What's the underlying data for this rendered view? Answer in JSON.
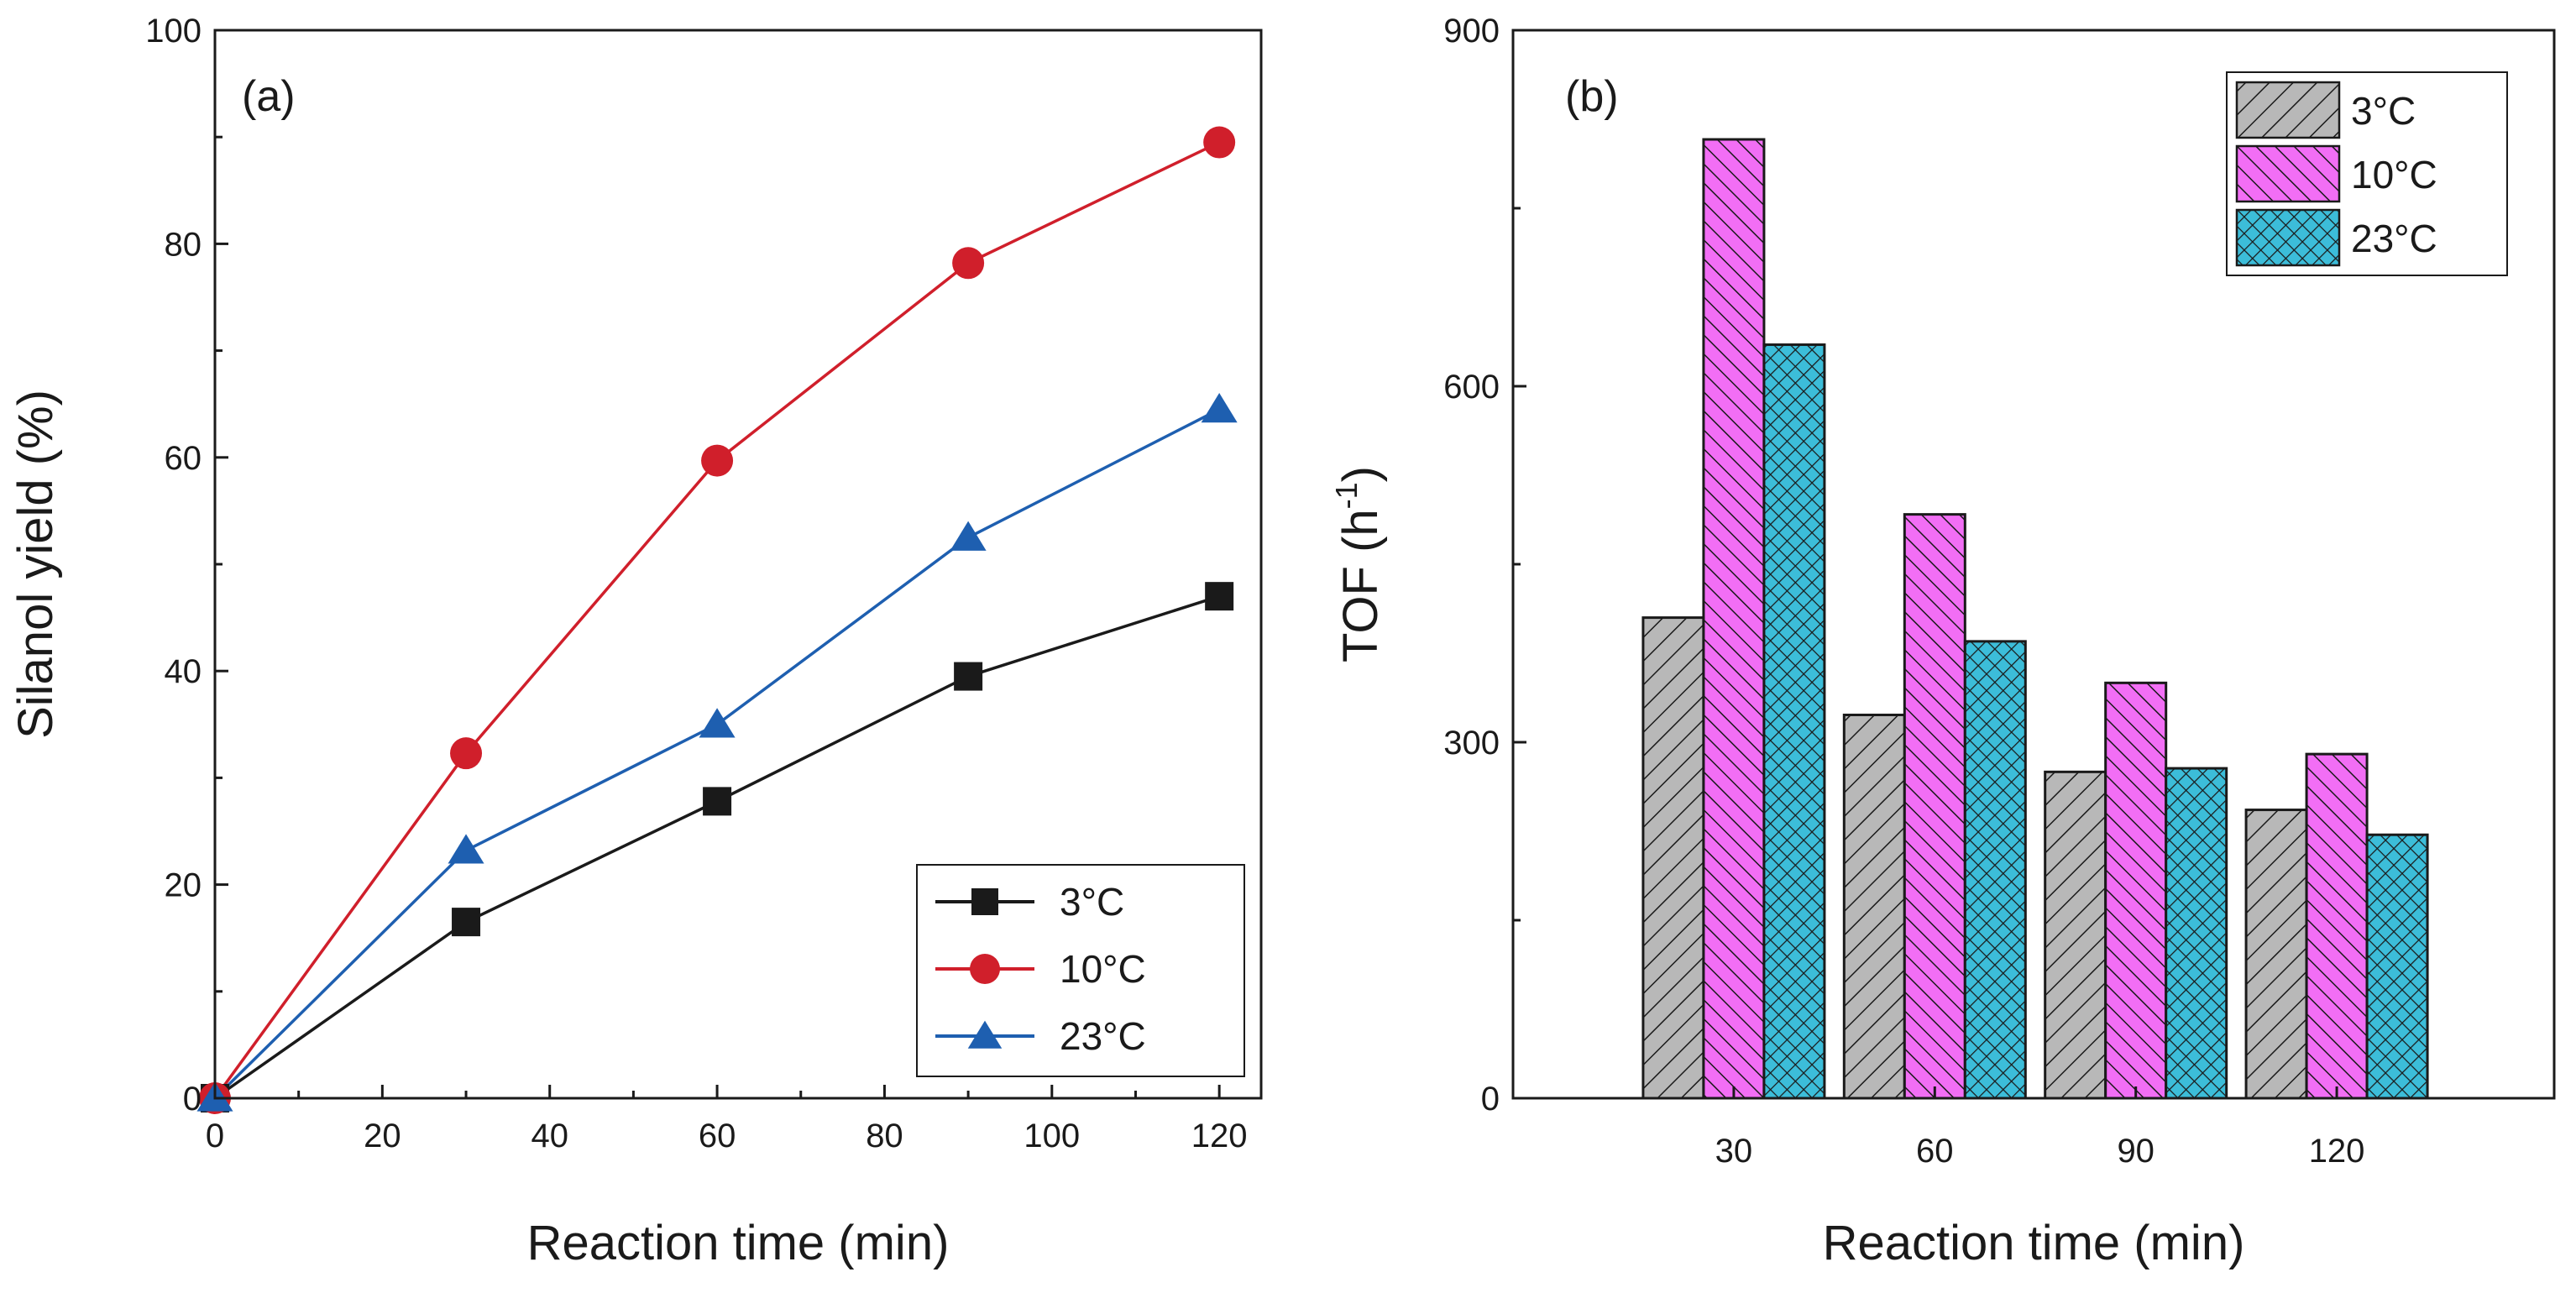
{
  "colors": {
    "axis": "#1a1a1a",
    "series_3C": "#1a1a1a",
    "series_10C": "#d01f2b",
    "series_23C": "#1e5fb0",
    "bar_3C": "#b8b8b8",
    "bar_10C": "#f26ef5",
    "bar_23C": "#3cbdd9"
  },
  "chart_data": [
    {
      "type": "line",
      "panel_label": "(a)",
      "title": "",
      "xlabel": "Reaction time (min)",
      "ylabel": "Silanol yield (%)",
      "xlim": [
        0,
        125
      ],
      "ylim": [
        0,
        100
      ],
      "xticks": [
        0,
        20,
        40,
        60,
        80,
        100,
        120
      ],
      "yticks": [
        0,
        20,
        40,
        60,
        80,
        100
      ],
      "x": [
        0,
        30,
        60,
        90,
        120
      ],
      "legend_position": "bottom-right",
      "series": [
        {
          "name": "3°C",
          "marker": "square",
          "color_key": "series_3C",
          "values": [
            0,
            16.5,
            27.8,
            39.5,
            47
          ]
        },
        {
          "name": "10°C",
          "marker": "circle",
          "color_key": "series_10C",
          "values": [
            0,
            32.3,
            59.7,
            78.2,
            89.5
          ]
        },
        {
          "name": "23°C",
          "marker": "triangle",
          "color_key": "series_23C",
          "values": [
            0,
            23.2,
            35,
            52.5,
            64.5
          ]
        }
      ]
    },
    {
      "type": "bar",
      "panel_label": "(b)",
      "title": "",
      "xlabel": "Reaction time (min)",
      "ylabel_main": "TOF (h",
      "ylabel_sup": "-1",
      "ylabel_close": ")",
      "ylim": [
        0,
        900
      ],
      "yticks": [
        0,
        300,
        600,
        900
      ],
      "categories": [
        "30",
        "60",
        "90",
        "120"
      ],
      "legend_position": "top-right",
      "series": [
        {
          "name": "3°C",
          "pattern": "diagonal",
          "color_key": "bar_3C",
          "values": [
            405,
            323,
            275,
            243
          ]
        },
        {
          "name": "10°C",
          "pattern": "back-diagonal",
          "color_key": "bar_10C",
          "values": [
            808,
            492,
            350,
            290
          ]
        },
        {
          "name": "23°C",
          "pattern": "crosshatch",
          "color_key": "bar_23C",
          "values": [
            635,
            385,
            278,
            222
          ]
        }
      ]
    }
  ]
}
